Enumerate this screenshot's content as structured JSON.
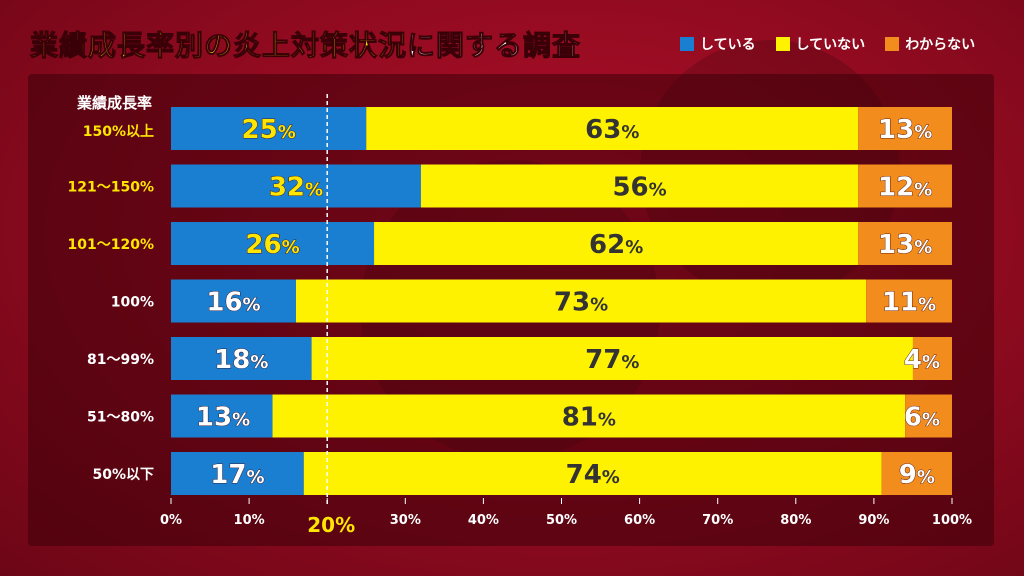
{
  "title": {
    "part1": "業績成長率別の炎上対策状況",
    "part2": "に関する調査"
  },
  "colors": {
    "blue": "#1a7fd0",
    "yellow": "#fff200",
    "orange": "#f28c1c",
    "refline": "#ffe600"
  },
  "legend": [
    {
      "label": "している",
      "color": "#1a7fd0"
    },
    {
      "label": "していない",
      "color": "#fff200"
    },
    {
      "label": "わからない",
      "color": "#f28c1c"
    }
  ],
  "row_header": "業績成長率",
  "chart_data": {
    "type": "bar",
    "orientation": "horizontal",
    "stacked": true,
    "percent_suffix": "%",
    "categories": [
      "150%以上",
      "121〜150%",
      "101〜120%",
      "100%",
      "81〜99%",
      "51〜80%",
      "50%以下"
    ],
    "category_highlight": [
      true,
      true,
      true,
      false,
      false,
      false,
      false
    ],
    "series": [
      {
        "name": "している",
        "values": [
          25,
          32,
          26,
          16,
          18,
          13,
          17
        ]
      },
      {
        "name": "していない",
        "values": [
          63,
          56,
          62,
          73,
          77,
          81,
          74
        ]
      },
      {
        "name": "わからない",
        "values": [
          13,
          12,
          13,
          11,
          4,
          6,
          9
        ]
      }
    ],
    "xlim": [
      0,
      100
    ],
    "xticks": [
      "0%",
      "10%",
      "20%",
      "30%",
      "40%",
      "50%",
      "60%",
      "70%",
      "80%",
      "90%",
      "100%"
    ],
    "reference_line": {
      "value": 20,
      "label": "20%"
    }
  }
}
